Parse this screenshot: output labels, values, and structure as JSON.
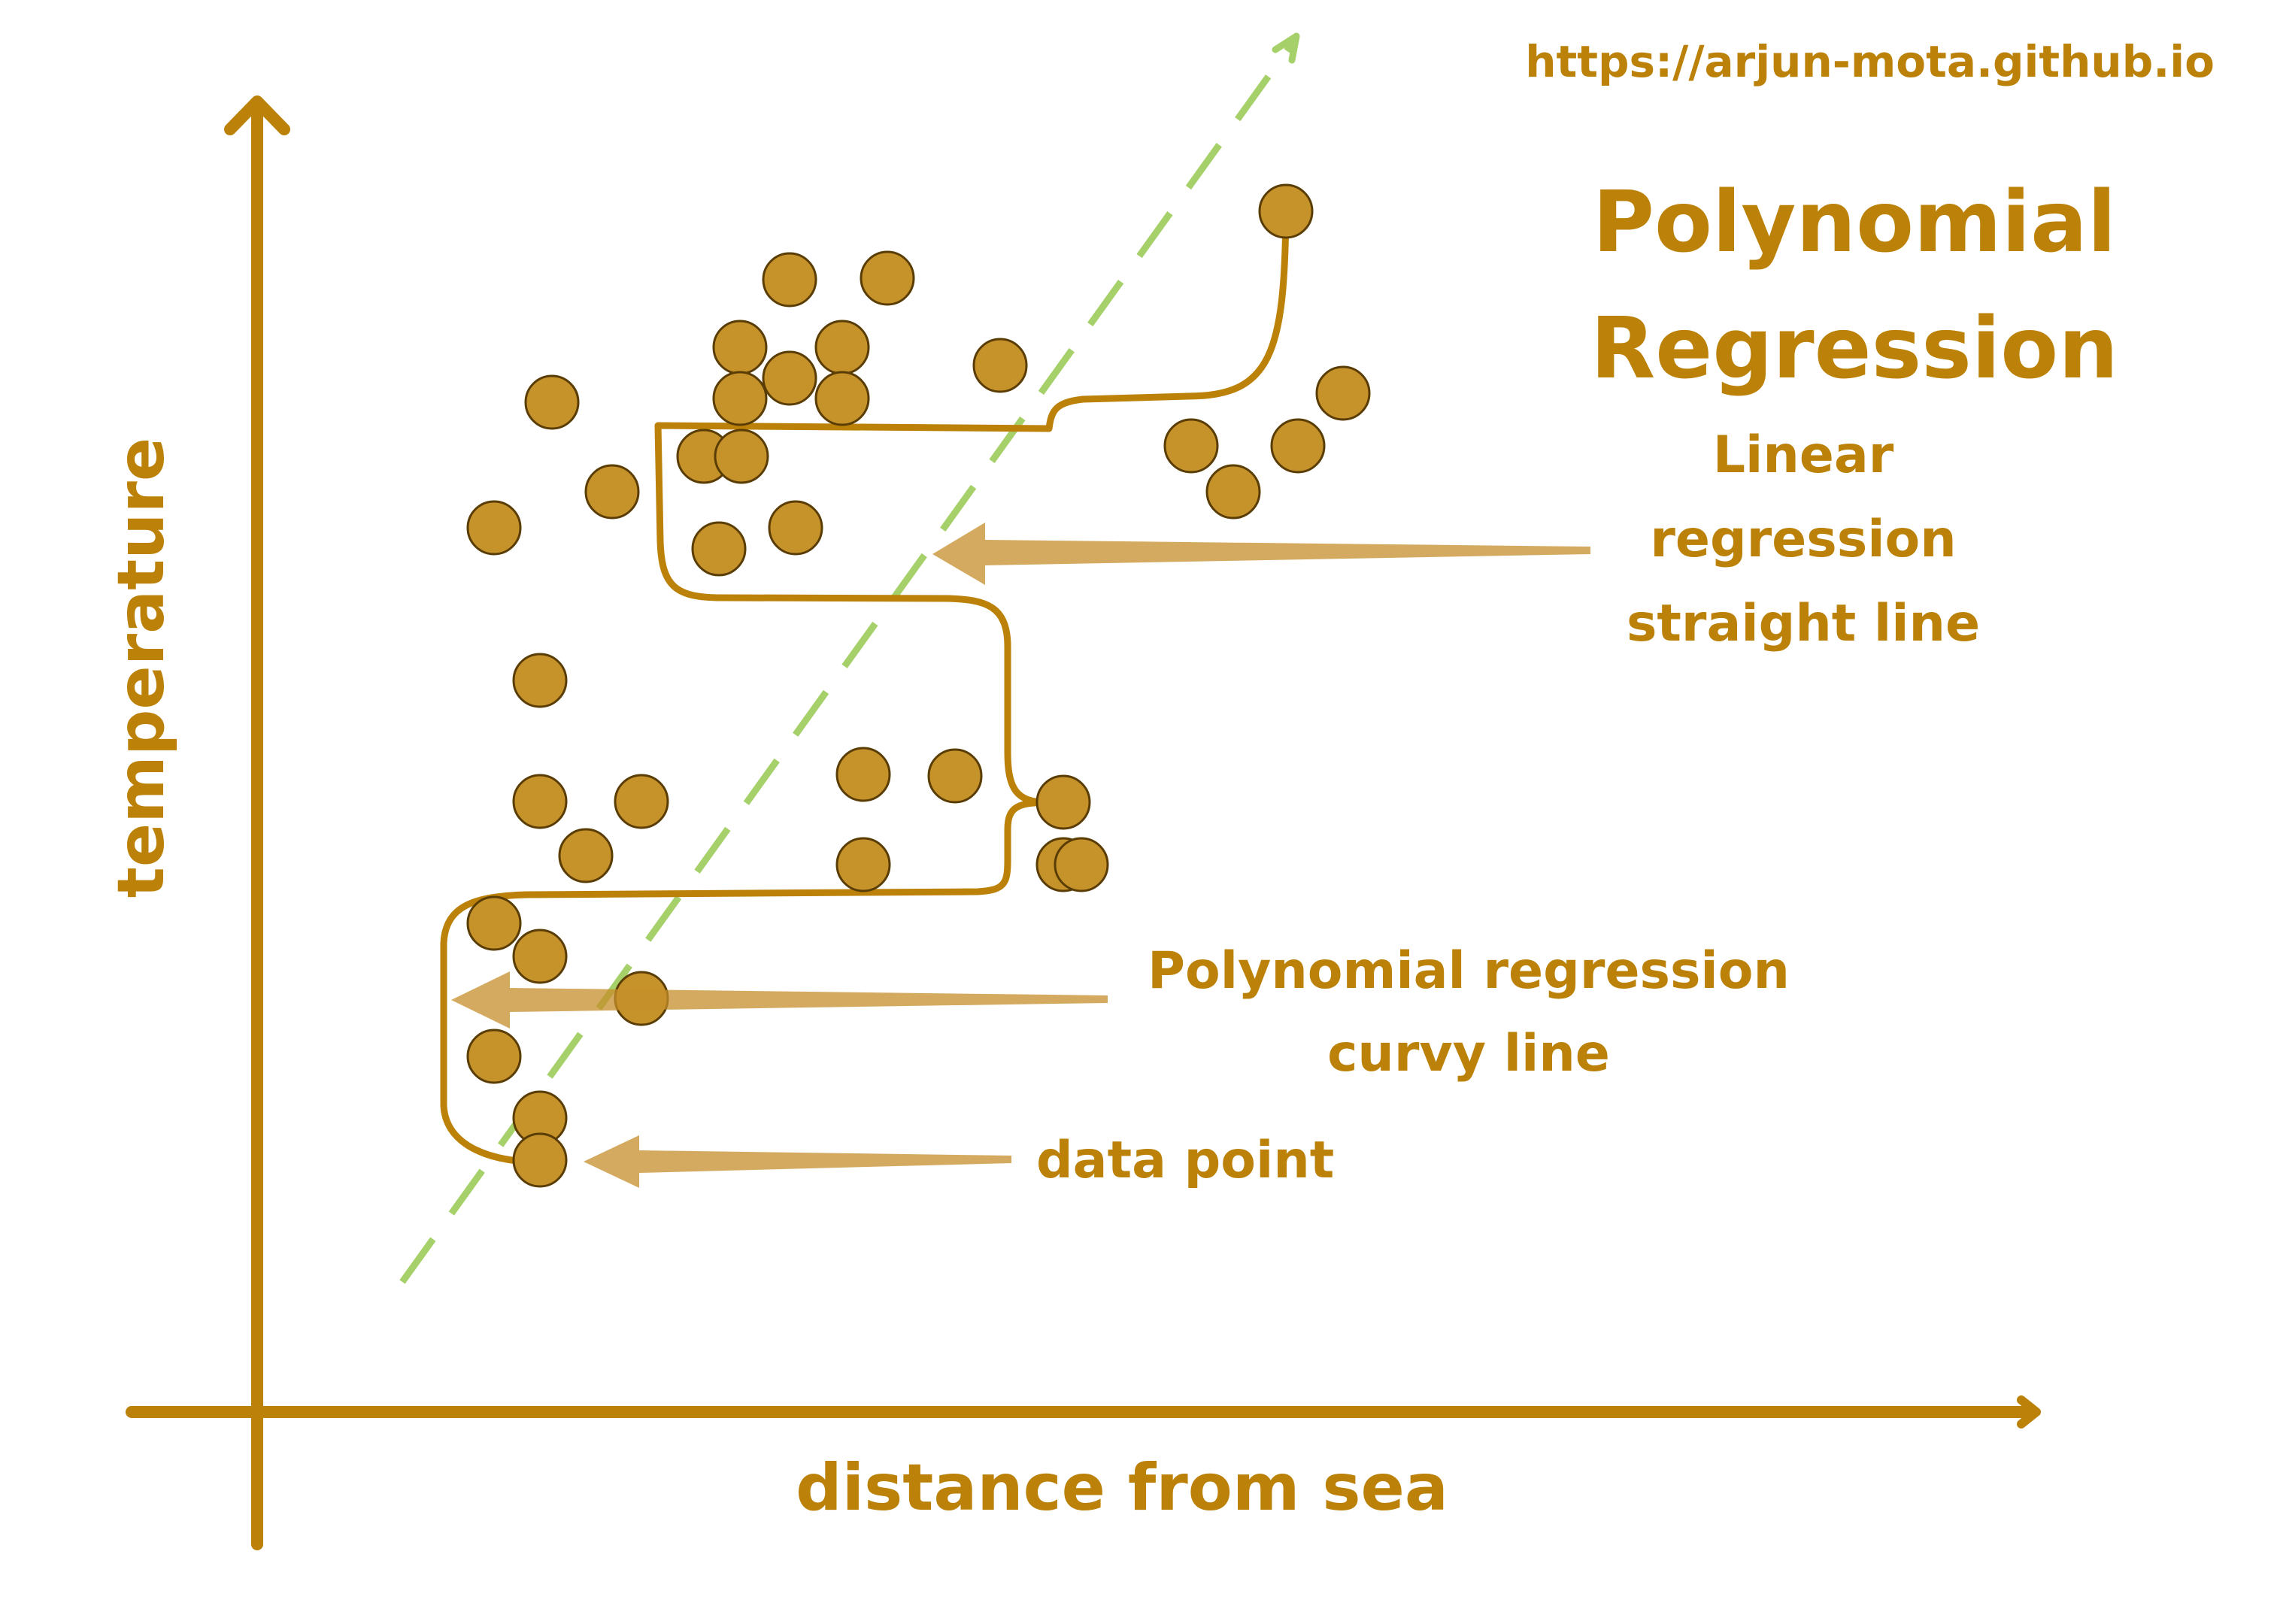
{
  "colors": {
    "accent": "#bb8108",
    "point_fill": "#c6922a",
    "point_stroke": "#5a3d05",
    "linear_line": "#a6d06a",
    "arrow_fill": "#d2a755"
  },
  "header": {
    "url": "https://arjun-mota.github.io",
    "title_line1": "Polynomial",
    "title_line2": "Regression"
  },
  "axes": {
    "x_label": "distance from sea",
    "y_label": "temperature"
  },
  "annotations": {
    "linear": [
      "Linear",
      "regression",
      "straight line"
    ],
    "polynomial": [
      "Polynomial regression",
      "curvy line"
    ],
    "data_point": "data point"
  },
  "data_point_count": 38
}
